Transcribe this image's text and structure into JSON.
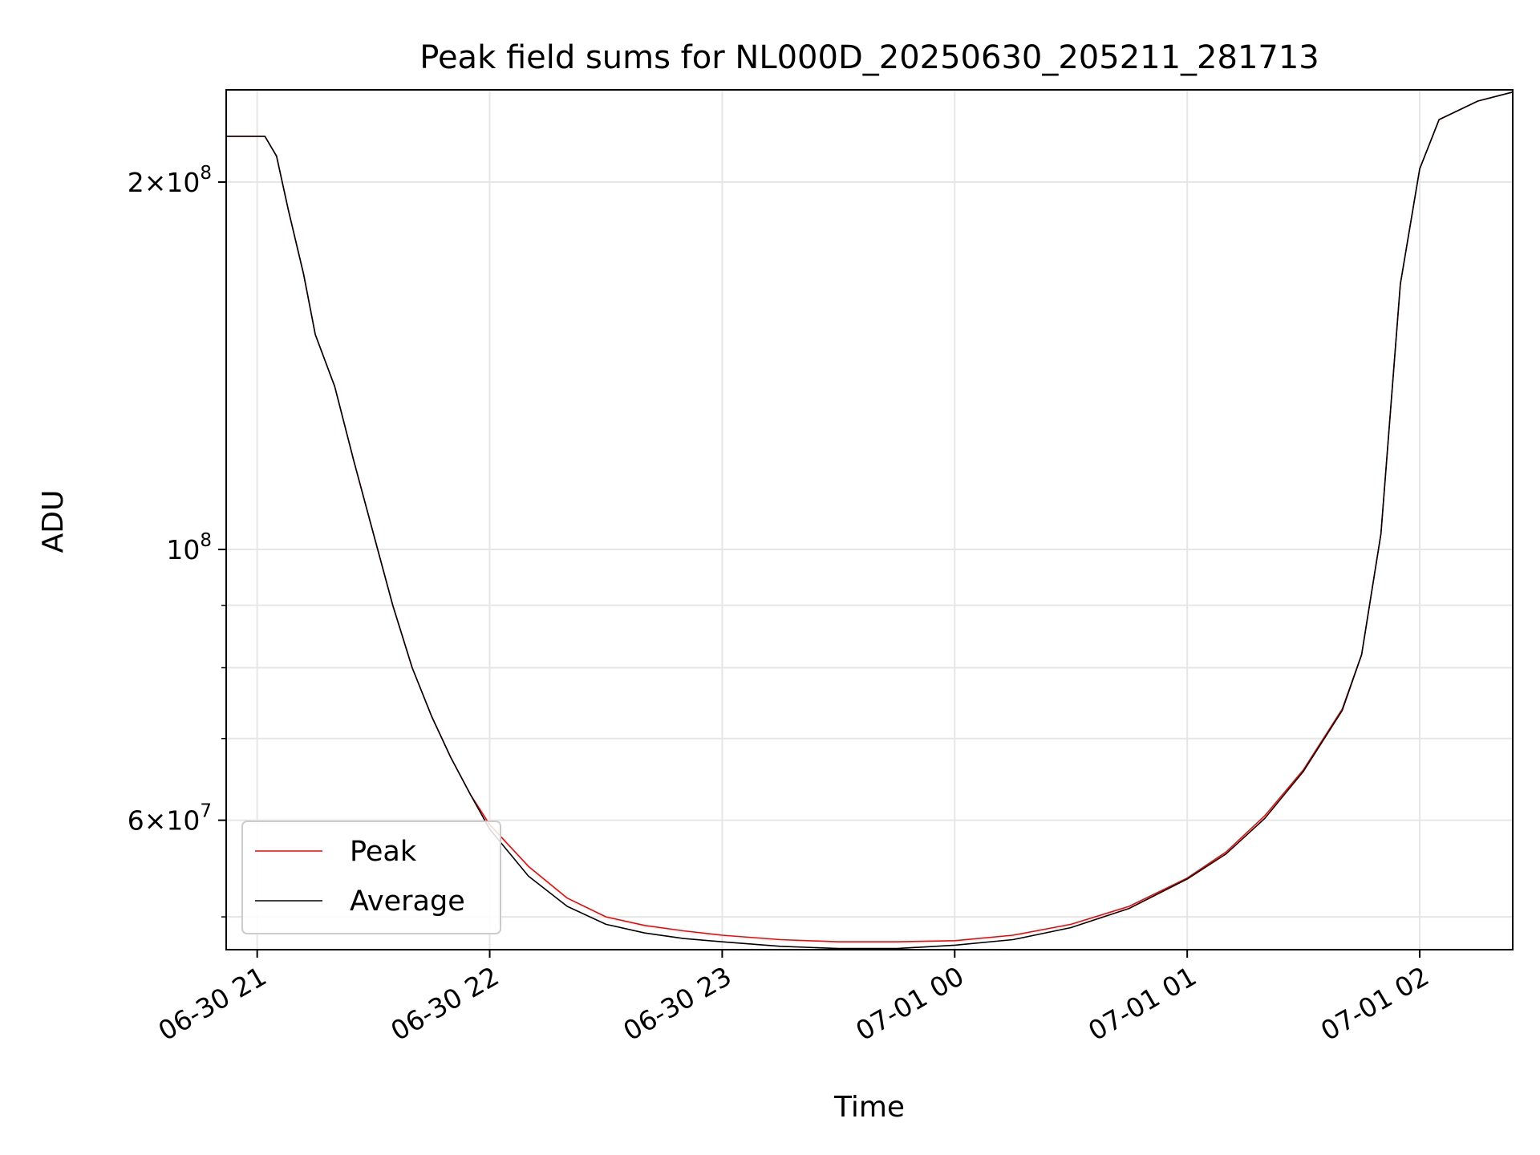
{
  "chart_data": {
    "type": "line",
    "title": "Peak field sums for NL000D_20250630_205211_281713",
    "xlabel": "Time",
    "ylabel": "ADU",
    "yscale": "log",
    "xlim": [
      "2025-06-30 20:52",
      "2025-07-01 02:24"
    ],
    "ylim": [
      47000000,
      238000000
    ],
    "grid": true,
    "legend_position": "lower-left",
    "xticks": [
      {
        "t": "2025-06-30 21:00",
        "label": "06-30 21"
      },
      {
        "t": "2025-06-30 22:00",
        "label": "06-30 22"
      },
      {
        "t": "2025-06-30 23:00",
        "label": "06-30 23"
      },
      {
        "t": "2025-07-01 00:00",
        "label": "07-01 00"
      },
      {
        "t": "2025-07-01 01:00",
        "label": "07-01 01"
      },
      {
        "t": "2025-07-01 02:00",
        "label": "07-01 02"
      }
    ],
    "yticks_major": [
      {
        "v": 60000000,
        "base": "6",
        "exp": "7"
      },
      {
        "v": 100000000,
        "base": "",
        "exp": "8"
      },
      {
        "v": 200000000,
        "base": "2",
        "exp": "8"
      }
    ],
    "yticks_minor": [
      50000000,
      70000000,
      80000000,
      90000000
    ],
    "series": [
      {
        "name": "Peak",
        "color": "#ff0000",
        "x": [
          "2025-06-30 20:52",
          "2025-06-30 21:02",
          "2025-06-30 21:05",
          "2025-06-30 21:08",
          "2025-06-30 21:12",
          "2025-06-30 21:15",
          "2025-06-30 21:20",
          "2025-06-30 21:25",
          "2025-06-30 21:30",
          "2025-06-30 21:35",
          "2025-06-30 21:40",
          "2025-06-30 21:45",
          "2025-06-30 21:50",
          "2025-06-30 21:55",
          "2025-06-30 22:00",
          "2025-06-30 22:10",
          "2025-06-30 22:20",
          "2025-06-30 22:30",
          "2025-06-30 22:40",
          "2025-06-30 22:50",
          "2025-06-30 23:00",
          "2025-06-30 23:15",
          "2025-06-30 23:30",
          "2025-06-30 23:45",
          "2025-07-01 00:00",
          "2025-07-01 00:15",
          "2025-07-01 00:30",
          "2025-07-01 00:45",
          "2025-07-01 01:00",
          "2025-07-01 01:10",
          "2025-07-01 01:20",
          "2025-07-01 01:30",
          "2025-07-01 01:40",
          "2025-07-01 01:45",
          "2025-07-01 01:50",
          "2025-07-01 01:55",
          "2025-07-01 02:00",
          "2025-07-01 02:05",
          "2025-07-01 02:15",
          "2025-07-01 02:24"
        ],
        "y": [
          218000000,
          218000000,
          210000000,
          190000000,
          168000000,
          150000000,
          136000000,
          118000000,
          103000000,
          90000000,
          80000000,
          73000000,
          67500000,
          63000000,
          59500000,
          55000000,
          51800000,
          50000000,
          49200000,
          48700000,
          48300000,
          47900000,
          47700000,
          47700000,
          47800000,
          48300000,
          49300000,
          51000000,
          53800000,
          56500000,
          60500000,
          66000000,
          74000000,
          82000000,
          103000000,
          165000000,
          205000000,
          225000000,
          233000000,
          237000000
        ]
      },
      {
        "name": "Average",
        "color": "#000000",
        "x": [
          "2025-06-30 20:52",
          "2025-06-30 21:02",
          "2025-06-30 21:05",
          "2025-06-30 21:08",
          "2025-06-30 21:12",
          "2025-06-30 21:15",
          "2025-06-30 21:20",
          "2025-06-30 21:25",
          "2025-06-30 21:30",
          "2025-06-30 21:35",
          "2025-06-30 21:40",
          "2025-06-30 21:45",
          "2025-06-30 21:50",
          "2025-06-30 21:55",
          "2025-06-30 22:00",
          "2025-06-30 22:10",
          "2025-06-30 22:20",
          "2025-06-30 22:30",
          "2025-06-30 22:40",
          "2025-06-30 22:50",
          "2025-06-30 23:00",
          "2025-06-30 23:15",
          "2025-06-30 23:30",
          "2025-06-30 23:45",
          "2025-07-01 00:00",
          "2025-07-01 00:15",
          "2025-07-01 00:30",
          "2025-07-01 00:45",
          "2025-07-01 01:00",
          "2025-07-01 01:10",
          "2025-07-01 01:20",
          "2025-07-01 01:30",
          "2025-07-01 01:40",
          "2025-07-01 01:45",
          "2025-07-01 01:50",
          "2025-07-01 01:55",
          "2025-07-01 02:00",
          "2025-07-01 02:05",
          "2025-07-01 02:15",
          "2025-07-01 02:24"
        ],
        "y": [
          218000000,
          218000000,
          210000000,
          190000000,
          168000000,
          150000000,
          136000000,
          118000000,
          103000000,
          90000000,
          80000000,
          73000000,
          67500000,
          63000000,
          59000000,
          54000000,
          51000000,
          49300000,
          48500000,
          48000000,
          47700000,
          47300000,
          47100000,
          47100000,
          47400000,
          47900000,
          49000000,
          50800000,
          53700000,
          56300000,
          60200000,
          65800000,
          73800000,
          82000000,
          103000000,
          165000000,
          205000000,
          225000000,
          233000000,
          237000000
        ]
      }
    ]
  }
}
